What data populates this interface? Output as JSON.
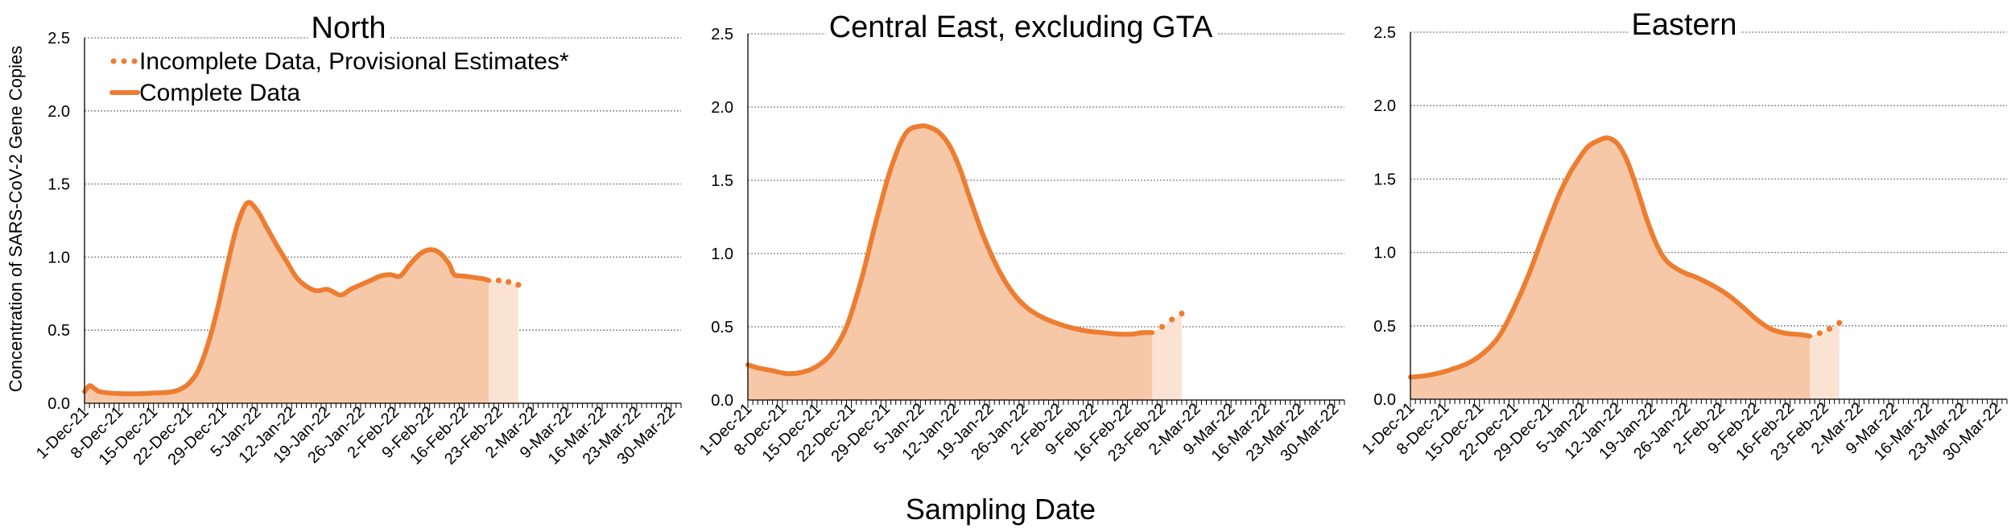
{
  "chart_data": {
    "type": "area",
    "xlabel": "Sampling Date",
    "ylabel": "Concentration of SARS-CoV-2 Gene Copies",
    "x_tick_labels": [
      "1-Dec-21",
      "8-Dec-21",
      "15-Dec-21",
      "22-Dec-21",
      "29-Dec-21",
      "5-Jan-22",
      "12-Jan-22",
      "19-Jan-22",
      "26-Jan-22",
      "2-Feb-22",
      "9-Feb-22",
      "16-Feb-22",
      "23-Feb-22",
      "2-Mar-22",
      "9-Mar-22",
      "16-Mar-22",
      "23-Mar-22",
      "30-Mar-22"
    ],
    "y_tick_labels": [
      "0.0",
      "0.5",
      "1.0",
      "1.5",
      "2.0",
      "2.5"
    ],
    "ylim": [
      0,
      2.5
    ],
    "x_range_days": [
      0,
      121
    ],
    "legend": {
      "placement": "top-left of first panel",
      "entries": [
        {
          "label": "Incomplete Data, Provisional Estimates*",
          "style": "dotted"
        },
        {
          "label": "Complete Data",
          "style": "solid"
        }
      ]
    },
    "colors": {
      "line": "#ED7D31",
      "fill": "#F7C8A8",
      "fill_light": "#FBE3D3",
      "grid": "#808080"
    },
    "panels": [
      {
        "title": "North",
        "complete": {
          "x": [
            0,
            1,
            2,
            3,
            5,
            8,
            11,
            14,
            17,
            19,
            21,
            23,
            25,
            27,
            29,
            31,
            33,
            35,
            37,
            39,
            41,
            43,
            45,
            47,
            49,
            50,
            52,
            54,
            56,
            58,
            60,
            62,
            64,
            66,
            68,
            70,
            72,
            74,
            75,
            77,
            79,
            81,
            82
          ],
          "y": [
            0.08,
            0.12,
            0.1,
            0.08,
            0.07,
            0.065,
            0.065,
            0.07,
            0.075,
            0.09,
            0.13,
            0.22,
            0.4,
            0.65,
            0.95,
            1.22,
            1.37,
            1.32,
            1.2,
            1.08,
            0.97,
            0.86,
            0.8,
            0.77,
            0.78,
            0.77,
            0.74,
            0.78,
            0.81,
            0.84,
            0.87,
            0.88,
            0.87,
            0.95,
            1.02,
            1.05,
            1.03,
            0.95,
            0.88,
            0.87,
            0.86,
            0.85,
            0.84
          ]
        },
        "provisional": {
          "x": [
            82,
            84,
            86,
            88
          ],
          "y": [
            0.84,
            0.84,
            0.83,
            0.81
          ]
        }
      },
      {
        "title": "Central East, excluding GTA",
        "complete": {
          "x": [
            0,
            2,
            5,
            8,
            11,
            14,
            17,
            20,
            23,
            26,
            29,
            32,
            35,
            37,
            39,
            41,
            43,
            45,
            48,
            51,
            54,
            57,
            60,
            63,
            66,
            69,
            72,
            75,
            78,
            80,
            82
          ],
          "y": [
            0.24,
            0.22,
            0.2,
            0.18,
            0.19,
            0.23,
            0.32,
            0.5,
            0.82,
            1.22,
            1.58,
            1.82,
            1.87,
            1.86,
            1.82,
            1.73,
            1.58,
            1.38,
            1.1,
            0.88,
            0.72,
            0.62,
            0.56,
            0.52,
            0.49,
            0.47,
            0.46,
            0.45,
            0.45,
            0.46,
            0.46
          ]
        },
        "provisional": {
          "x": [
            82,
            84,
            86,
            88
          ],
          "y": [
            0.46,
            0.5,
            0.55,
            0.59
          ]
        }
      },
      {
        "title": "Eastern",
        "complete": {
          "x": [
            0,
            3,
            6,
            9,
            12,
            15,
            18,
            21,
            24,
            27,
            30,
            32,
            34,
            36,
            38,
            40,
            42,
            44,
            46,
            48,
            50,
            52,
            55,
            58,
            61,
            64,
            67,
            70,
            73,
            76,
            79,
            81
          ],
          "y": [
            0.15,
            0.16,
            0.18,
            0.21,
            0.25,
            0.32,
            0.43,
            0.62,
            0.85,
            1.12,
            1.38,
            1.52,
            1.63,
            1.72,
            1.76,
            1.78,
            1.74,
            1.62,
            1.43,
            1.22,
            1.05,
            0.94,
            0.87,
            0.83,
            0.78,
            0.72,
            0.64,
            0.55,
            0.48,
            0.45,
            0.44,
            0.43
          ]
        },
        "provisional": {
          "x": [
            81,
            83,
            85,
            87
          ],
          "y": [
            0.43,
            0.45,
            0.48,
            0.52
          ]
        }
      }
    ]
  }
}
